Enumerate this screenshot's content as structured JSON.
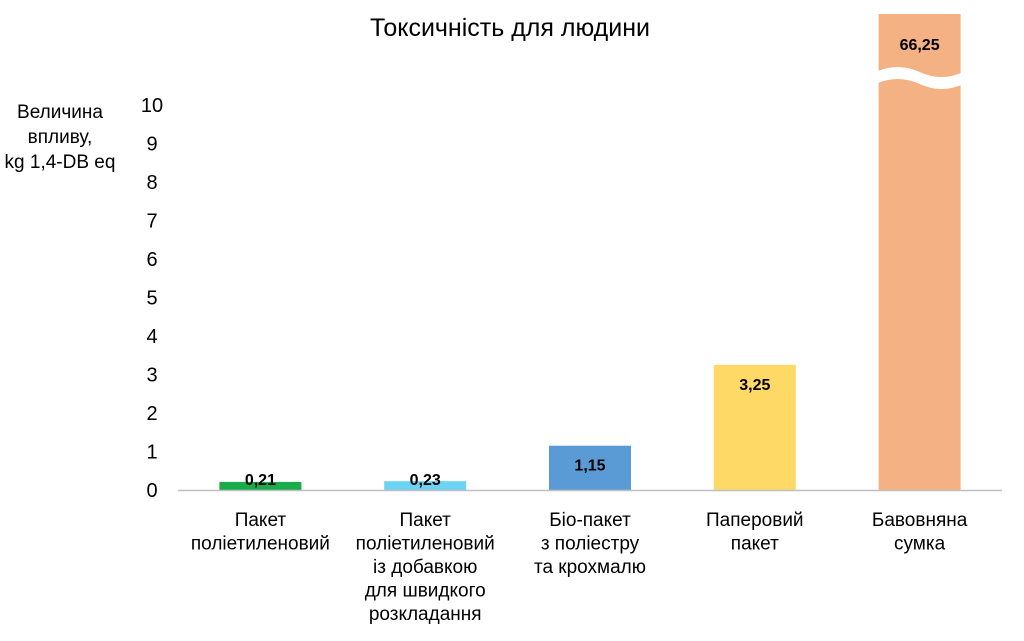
{
  "chart_data": {
    "type": "bar",
    "title": "Токсичність для людини",
    "ylabel_lines": [
      "Величина",
      "впливу,",
      "kg 1,4-DB eq"
    ],
    "xlabel": "",
    "ylim": [
      0,
      10
    ],
    "yticks": [
      0,
      1,
      2,
      3,
      4,
      5,
      6,
      7,
      8,
      9,
      10
    ],
    "axis_break": true,
    "grid": false,
    "legend": "none",
    "categories": [
      [
        "Пакет",
        "поліетиленовий"
      ],
      [
        "Пакет",
        "поліетиленовий",
        "із добавкою",
        "для швидкого",
        "розкладання"
      ],
      [
        "Біо-пакет",
        "з поліестру",
        "та крохмалю"
      ],
      [
        "Паперовий",
        "пакет"
      ],
      [
        "Бавовняна",
        "сумка"
      ]
    ],
    "values": [
      0.21,
      0.23,
      1.15,
      3.25,
      66.25
    ],
    "value_labels": [
      "0,21",
      "0,23",
      "1,15",
      "3,25",
      "66,25"
    ],
    "colors": [
      "#1aab4b",
      "#6dd3f4",
      "#5b9bd5",
      "#ffd966",
      "#f4b183"
    ]
  }
}
